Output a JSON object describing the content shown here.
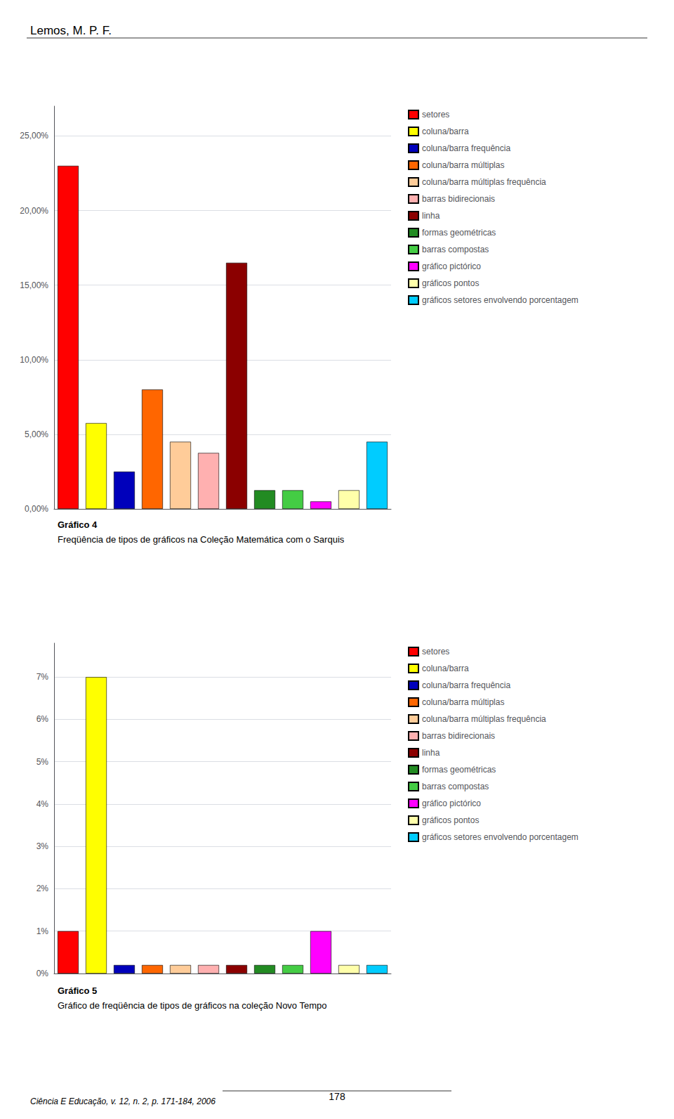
{
  "header": "Lemos, M. P. F.",
  "footer": "Ciência E Educação, v. 12, n. 2, p. 171-184, 2006",
  "page_number": "178",
  "chart_data": [
    {
      "type": "bar",
      "title": "Gráfico 4",
      "subtitle": "Freqüência de tipos de gráficos na Coleção Matemática com o Sarquis",
      "categories": [
        "setores",
        "coluna/barra",
        "coluna/barra frequência",
        "coluna/barra múltiplas",
        "coluna/barra múltiplas frequência",
        "barras bidirecionais",
        "linha",
        "formas geométricas",
        "barras compostas",
        "gráfico pictórico",
        "gráficos pontos",
        "gráficos setores envolvendo porcentagem"
      ],
      "values": [
        0.23,
        0.0575,
        0.025,
        0.08,
        0.045,
        0.0375,
        0.165,
        0.0125,
        0.0125,
        0.005,
        0.0125,
        0.045
      ],
      "colors": [
        "#FF0000",
        "#FFFF00",
        "#0000BB",
        "#FF6600",
        "#FFCC99",
        "#FFB0B0",
        "#8B0000",
        "#228B22",
        "#44CC44",
        "#FF00FF",
        "#FFFFAA",
        "#00CCFF"
      ],
      "ylim": [
        0,
        0.27
      ],
      "yticks": [
        {
          "value": 0.0,
          "label": "0,00%"
        },
        {
          "value": 0.05,
          "label": "5,00%"
        },
        {
          "value": 0.1,
          "label": "10,00%"
        },
        {
          "value": 0.15,
          "label": "15,00%"
        },
        {
          "value": 0.2,
          "label": "20,00%"
        },
        {
          "value": 0.25,
          "label": "25,00%"
        }
      ],
      "grid": true,
      "legend": "right",
      "tick_labels": "y"
    },
    {
      "type": "bar",
      "title": "Gráfico 5",
      "subtitle": "Gráfico de freqüência de tipos de gráficos na coleção Novo Tempo",
      "categories": [
        "setores",
        "coluna/barra",
        "coluna/barra frequência",
        "coluna/barra múltiplas",
        "coluna/barra múltiplas frequência",
        "barras bidirecionais",
        "linha",
        "formas geométricas",
        "barras compostas",
        "gráfico pictórico",
        "gráficos pontos",
        "gráficos setores envolvendo porcentagem"
      ],
      "values": [
        0.01,
        0.07,
        0.002,
        0.002,
        0.002,
        0.002,
        0.002,
        0.002,
        0.002,
        0.01,
        0.002,
        0.002
      ],
      "colors": [
        "#FF0000",
        "#FFFF00",
        "#0000BB",
        "#FF6600",
        "#FFCC99",
        "#FFB0B0",
        "#8B0000",
        "#228B22",
        "#44CC44",
        "#FF00FF",
        "#FFFFAA",
        "#00CCFF"
      ],
      "ylim": [
        0,
        0.078
      ],
      "yticks": [
        {
          "value": 0.0,
          "label": "0%"
        },
        {
          "value": 0.01,
          "label": "1%"
        },
        {
          "value": 0.02,
          "label": "2%"
        },
        {
          "value": 0.03,
          "label": "3%"
        },
        {
          "value": 0.04,
          "label": "4%"
        },
        {
          "value": 0.05,
          "label": "5%"
        },
        {
          "value": 0.06,
          "label": "6%"
        },
        {
          "value": 0.07,
          "label": "7%"
        }
      ],
      "grid": true,
      "legend": "right",
      "tick_labels": "y"
    }
  ]
}
